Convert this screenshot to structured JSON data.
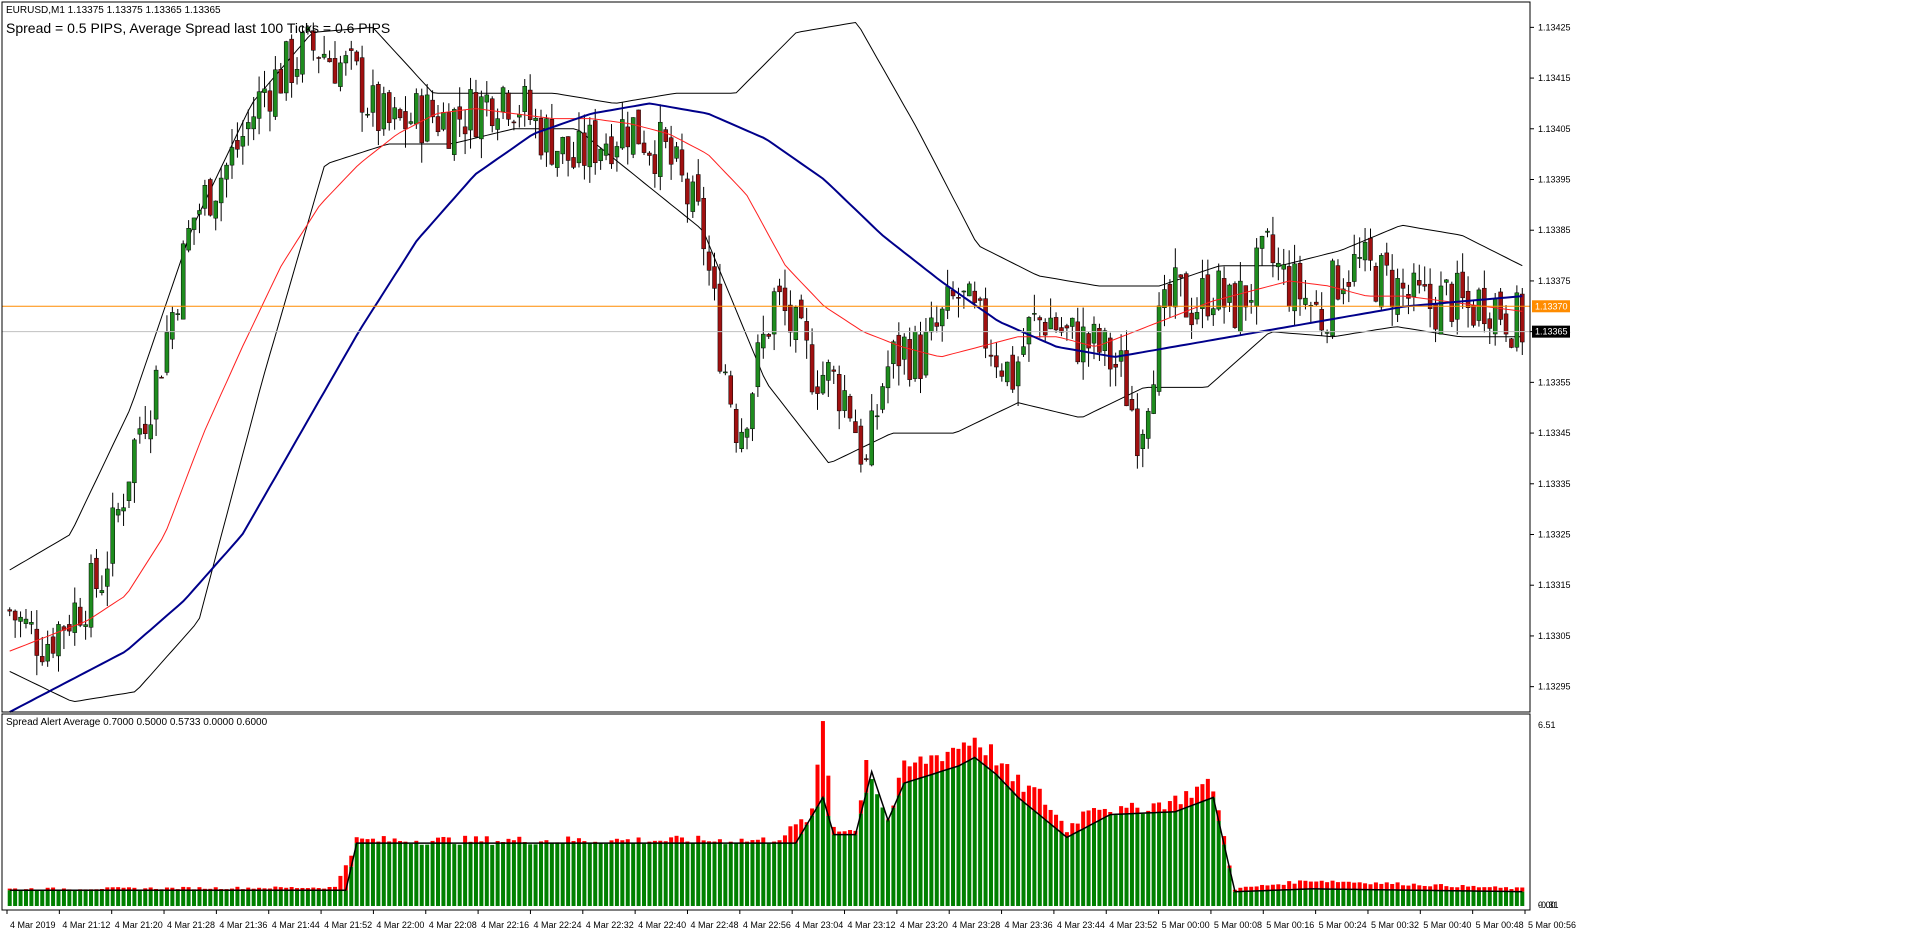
{
  "window": {
    "title": "EURUSD,M1  1.13375 1.13375 1.13365 1.13365",
    "spread_text": "Spread = 0.5 PIPS, Average Spread last 100 Ticks = 0.6 PIPS",
    "indicator_title": "Spread Alert Average 0.7000 0.5000 0.5733 0.0000 0.6000"
  },
  "colors": {
    "bull_candle": "#1e8c1e",
    "bear_candle": "#a01010",
    "ma_fast": "#ff2020",
    "ma_slow": "#00008b",
    "bollinger": "#000000",
    "bid_line": "#ff8c00",
    "ask_line": "#c0c0c0",
    "spread_above_avg": "#ff0000",
    "spread_base": "#008000",
    "spread_avg_line": "#000000"
  },
  "chart_data": [
    {
      "type": "candlestick",
      "symbol": "EURUSD",
      "timeframe": "M1",
      "ylim": [
        1.1329,
        1.1343
      ],
      "y_ticks": [
        "1.13425",
        "1.13415",
        "1.13405",
        "1.13395",
        "1.13385",
        "1.13375",
        "1.13365",
        "1.13355",
        "1.13345",
        "1.13335",
        "1.13325",
        "1.13315",
        "1.13305",
        "1.13295"
      ],
      "x_ticks": [
        "4 Mar 2019",
        "4 Mar 21:12",
        "4 Mar 21:20",
        "4 Mar 21:28",
        "4 Mar 21:36",
        "4 Mar 21:44",
        "4 Mar 21:52",
        "4 Mar 22:00",
        "4 Mar 22:08",
        "4 Mar 22:16",
        "4 Mar 22:24",
        "4 Mar 22:32",
        "4 Mar 22:40",
        "4 Mar 22:48",
        "4 Mar 22:56",
        "4 Mar 23:04",
        "4 Mar 23:12",
        "4 Mar 23:20",
        "4 Mar 23:28",
        "4 Mar 23:36",
        "4 Mar 23:44",
        "4 Mar 23:52",
        "5 Mar 00:00",
        "5 Mar 00:08",
        "5 Mar 00:16",
        "5 Mar 00:24",
        "5 Mar 00:32",
        "5 Mar 00:40",
        "5 Mar 00:48",
        "5 Mar 00:56"
      ],
      "bid_price": 1.1337,
      "bid_label": "1.13370",
      "last_price": 1.13365,
      "last_label": "1.13365",
      "close_path": [
        1.1331,
        1.13306,
        1.13304,
        1.13308,
        1.13312,
        1.13316,
        1.1333,
        1.13345,
        1.13355,
        1.1337,
        1.13387,
        1.13393,
        1.13398,
        1.13405,
        1.13413,
        1.13416,
        1.1342,
        1.13421,
        1.13418,
        1.13415,
        1.13408,
        1.13405,
        1.13407,
        1.13408,
        1.13407,
        1.13408,
        1.1341,
        1.13413,
        1.1341,
        1.13405,
        1.13402,
        1.13398,
        1.13402,
        1.13404,
        1.13406,
        1.13403,
        1.134,
        1.13393,
        1.13385,
        1.13362,
        1.13345,
        1.13358,
        1.13372,
        1.13365,
        1.13358,
        1.13356,
        1.13352,
        1.13338,
        1.13357,
        1.13362,
        1.1336,
        1.13366,
        1.13372,
        1.13367,
        1.13362,
        1.13356,
        1.13366,
        1.13368,
        1.13364,
        1.13363,
        1.13361,
        1.13357,
        1.13345,
        1.13365,
        1.13372,
        1.1337,
        1.13374,
        1.13369,
        1.13373,
        1.1338,
        1.13375,
        1.13372,
        1.13368,
        1.13377,
        1.13378,
        1.13376,
        1.13374,
        1.13371,
        1.1337,
        1.13372,
        1.13369,
        1.13372,
        1.13369,
        1.13366
      ],
      "ma_fast_path": [
        1.13302,
        1.13305,
        1.13308,
        1.13313,
        1.13325,
        1.13345,
        1.13362,
        1.13378,
        1.1339,
        1.13398,
        1.13404,
        1.13408,
        1.13409,
        1.13408,
        1.13407,
        1.13407,
        1.13406,
        1.13404,
        1.134,
        1.13392,
        1.13378,
        1.1337,
        1.13365,
        1.13362,
        1.1336,
        1.13362,
        1.13364,
        1.13364,
        1.13362,
        1.13365,
        1.13368,
        1.13371,
        1.13373,
        1.13375,
        1.13374,
        1.13372,
        1.13372,
        1.13371,
        1.1337,
        1.13369
      ],
      "ma_slow_path": [
        1.1329,
        1.13296,
        1.13302,
        1.13312,
        1.13325,
        1.13345,
        1.13365,
        1.13383,
        1.13396,
        1.13404,
        1.13408,
        1.1341,
        1.13408,
        1.13403,
        1.13395,
        1.13384,
        1.13375,
        1.13367,
        1.13362,
        1.1336,
        1.13362,
        1.13364,
        1.13366,
        1.13368,
        1.1337,
        1.13371,
        1.13372
      ],
      "bollinger_upper_path": [
        1.13318,
        1.13325,
        1.1335,
        1.13385,
        1.1341,
        1.13424,
        1.13425,
        1.13412,
        1.13412,
        1.13412,
        1.1341,
        1.13412,
        1.13412,
        1.13424,
        1.13426,
        1.13405,
        1.13382,
        1.13376,
        1.13374,
        1.13374,
        1.13378,
        1.13378,
        1.13381,
        1.13386,
        1.13384,
        1.13378
      ],
      "bollinger_lower_path": [
        1.13298,
        1.13292,
        1.13294,
        1.13308,
        1.13355,
        1.13398,
        1.13402,
        1.13402,
        1.13405,
        1.13405,
        1.13395,
        1.13385,
        1.13355,
        1.13339,
        1.13345,
        1.13345,
        1.13351,
        1.13348,
        1.13354,
        1.13354,
        1.13365,
        1.13364,
        1.13366,
        1.13364,
        1.13364
      ],
      "volatility_seed": 7
    },
    {
      "type": "histogram",
      "name": "Spread Alert Average",
      "ylim": [
        0,
        6.51
      ],
      "y_ticks": [
        "6.51",
        "0.00",
        "-0.31"
      ],
      "values_profile": [
        [
          0,
          0.6
        ],
        [
          60,
          0.65
        ],
        [
          64,
          2.3
        ],
        [
          140,
          2.3
        ],
        [
          143,
          2.5
        ],
        [
          148,
          3.2
        ],
        [
          150,
          6.5
        ],
        [
          152,
          2.8
        ],
        [
          156,
          2.6
        ],
        [
          158,
          5.2
        ],
        [
          160,
          4.0
        ],
        [
          162,
          3.0
        ],
        [
          165,
          4.8
        ],
        [
          170,
          5.2
        ],
        [
          175,
          5.6
        ],
        [
          178,
          5.9
        ],
        [
          182,
          5.2
        ],
        [
          185,
          4.4
        ],
        [
          190,
          3.9
        ],
        [
          195,
          2.7
        ],
        [
          200,
          3.6
        ],
        [
          205,
          3.3
        ],
        [
          210,
          3.5
        ],
        [
          215,
          3.7
        ],
        [
          220,
          4.2
        ],
        [
          222,
          4.2
        ],
        [
          226,
          0.6
        ],
        [
          240,
          0.9
        ],
        [
          280,
          0.6
        ]
      ],
      "average_profile": [
        [
          0,
          0.55
        ],
        [
          62,
          0.55
        ],
        [
          64,
          2.2
        ],
        [
          145,
          2.2
        ],
        [
          150,
          3.8
        ],
        [
          152,
          2.5
        ],
        [
          156,
          2.5
        ],
        [
          159,
          4.7
        ],
        [
          162,
          3.0
        ],
        [
          165,
          4.3
        ],
        [
          175,
          4.9
        ],
        [
          178,
          5.2
        ],
        [
          182,
          4.6
        ],
        [
          186,
          3.8
        ],
        [
          195,
          2.4
        ],
        [
          203,
          3.2
        ],
        [
          215,
          3.3
        ],
        [
          222,
          3.8
        ],
        [
          226,
          0.5
        ],
        [
          240,
          0.6
        ],
        [
          280,
          0.5
        ]
      ]
    }
  ]
}
